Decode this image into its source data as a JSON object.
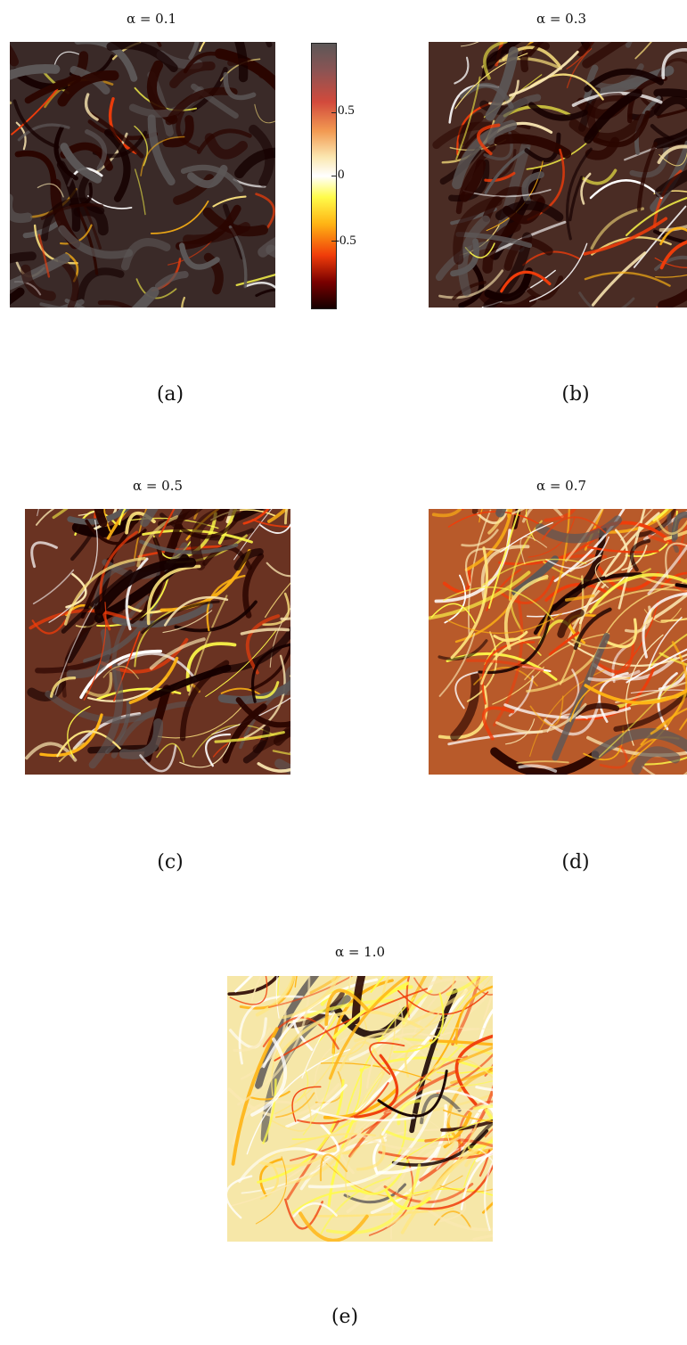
{
  "panels": [
    {
      "id": "a",
      "title": "α = 0.1",
      "caption": "(a)",
      "alpha": 0.1
    },
    {
      "id": "b",
      "title": "α = 0.3",
      "caption": "(b)",
      "alpha": 0.3
    },
    {
      "id": "c",
      "title": "α = 0.5",
      "caption": "(c)",
      "alpha": 0.5
    },
    {
      "id": "d",
      "title": "α = 0.7",
      "caption": "(d)",
      "alpha": 0.7
    },
    {
      "id": "e",
      "title": "α = 1.0",
      "caption": "(e)",
      "alpha": 1.0
    }
  ],
  "colorbar": {
    "ticks": [
      "0.5",
      "0",
      "-0.5"
    ],
    "colors": [
      "#5c5757",
      "#d24a3c",
      "#ffffff",
      "#fffc4a",
      "#f03c0a",
      "#150000"
    ]
  }
}
